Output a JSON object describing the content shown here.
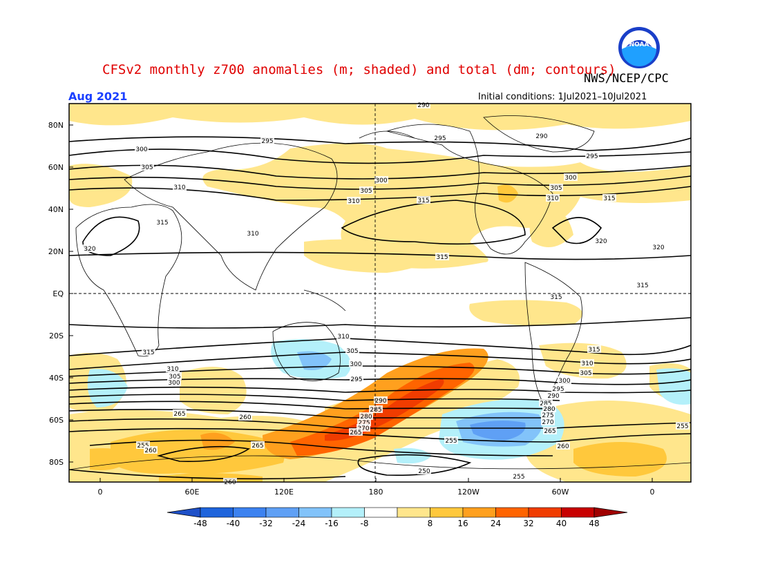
{
  "header": {
    "title": "CFSv2 monthly z700 anomalies (m; shaded) and total (dm; contours)",
    "agency": "NWS/NCEP/CPC",
    "month": "Aug 2021",
    "initial_conditions": "Initial conditions: 1Jul2021–10Jul2021",
    "logo_text": "NOAA"
  },
  "map": {
    "lat_labels": [
      "80N",
      "60N",
      "40N",
      "20N",
      "EQ",
      "20S",
      "40S",
      "60S",
      "80S"
    ],
    "lon_labels": [
      "0",
      "60E",
      "120E",
      "180",
      "120W",
      "60W",
      "0"
    ],
    "contour_labels": [
      "290",
      "295",
      "300",
      "305",
      "310",
      "315",
      "320",
      "315",
      "310",
      "305",
      "300",
      "295",
      "290",
      "285",
      "280",
      "275",
      "270",
      "265",
      "260",
      "255",
      "250"
    ]
  },
  "colorbar": {
    "ticks": [
      "-48",
      "-40",
      "-32",
      "-24",
      "-16",
      "-8",
      "8",
      "16",
      "24",
      "32",
      "40",
      "48"
    ],
    "colors": [
      "#1e64dc",
      "#3c82f0",
      "#5fa0f5",
      "#82c3fa",
      "#b4f0fa",
      "#ffffff",
      "#ffe68c",
      "#ffc83c",
      "#ffa01e",
      "#ff6400",
      "#f03c00",
      "#c80000"
    ],
    "low_arrow_color": "#1e50c8",
    "high_arrow_color": "#a00000"
  }
}
